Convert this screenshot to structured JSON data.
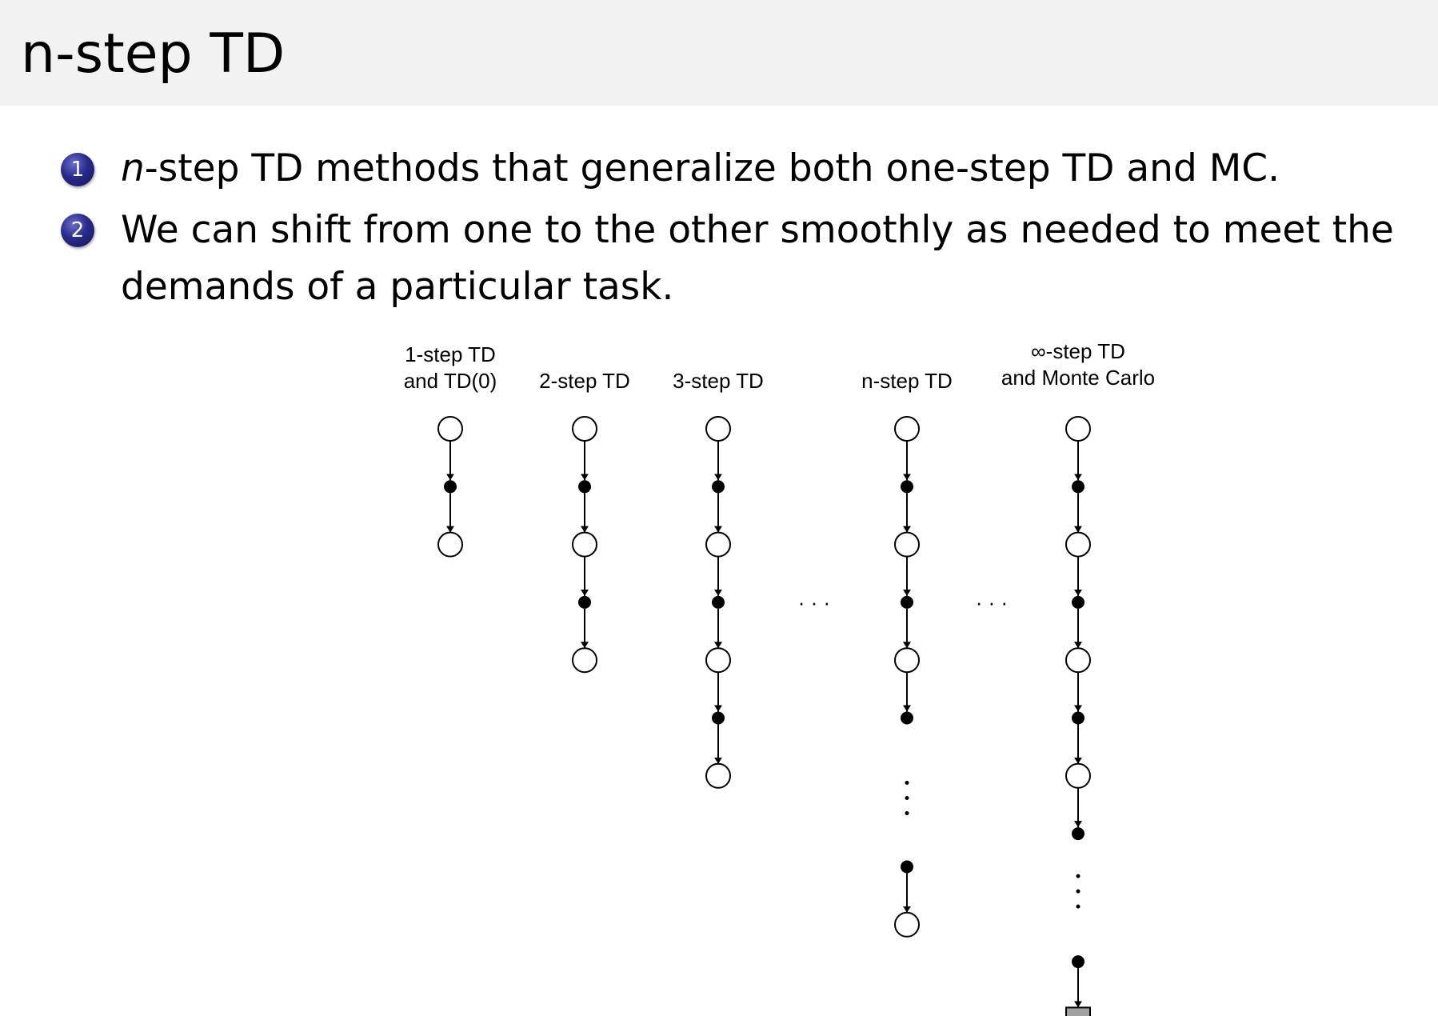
{
  "slide": {
    "title": "n-step TD",
    "bullets": [
      {
        "number": "1",
        "italic_prefix": "n",
        "text": "-step TD methods that generalize both one-step TD and MC."
      },
      {
        "number": "2",
        "lines": [
          "We can shift from one to the other smoothly as needed to meet the",
          "demands of a particular task."
        ]
      }
    ]
  },
  "diagram": {
    "columns": [
      {
        "label": [
          "1-step TD",
          "and TD(0)"
        ],
        "nodes": [
          "state",
          "action",
          "state"
        ]
      },
      {
        "label": [
          "2-step TD"
        ],
        "nodes": [
          "state",
          "action",
          "state",
          "action",
          "state"
        ]
      },
      {
        "label": [
          "3-step TD"
        ],
        "nodes": [
          "state",
          "action",
          "state",
          "action",
          "state",
          "action",
          "state"
        ]
      },
      {
        "label": [
          "n-step TD"
        ],
        "nodes": [
          "state",
          "action",
          "state",
          "action",
          "state",
          "action",
          "vdots",
          "action",
          "state"
        ]
      },
      {
        "label": [
          "∞-step TD",
          "and Monte Carlo"
        ],
        "nodes": [
          "state",
          "action",
          "state",
          "action",
          "state",
          "action",
          "state",
          "action",
          "vdots",
          "action",
          "terminal"
        ]
      }
    ],
    "ellipsis": "· · ·",
    "colors": {
      "terminal_fill": "#a0a0a0",
      "stroke": "#000000"
    }
  }
}
